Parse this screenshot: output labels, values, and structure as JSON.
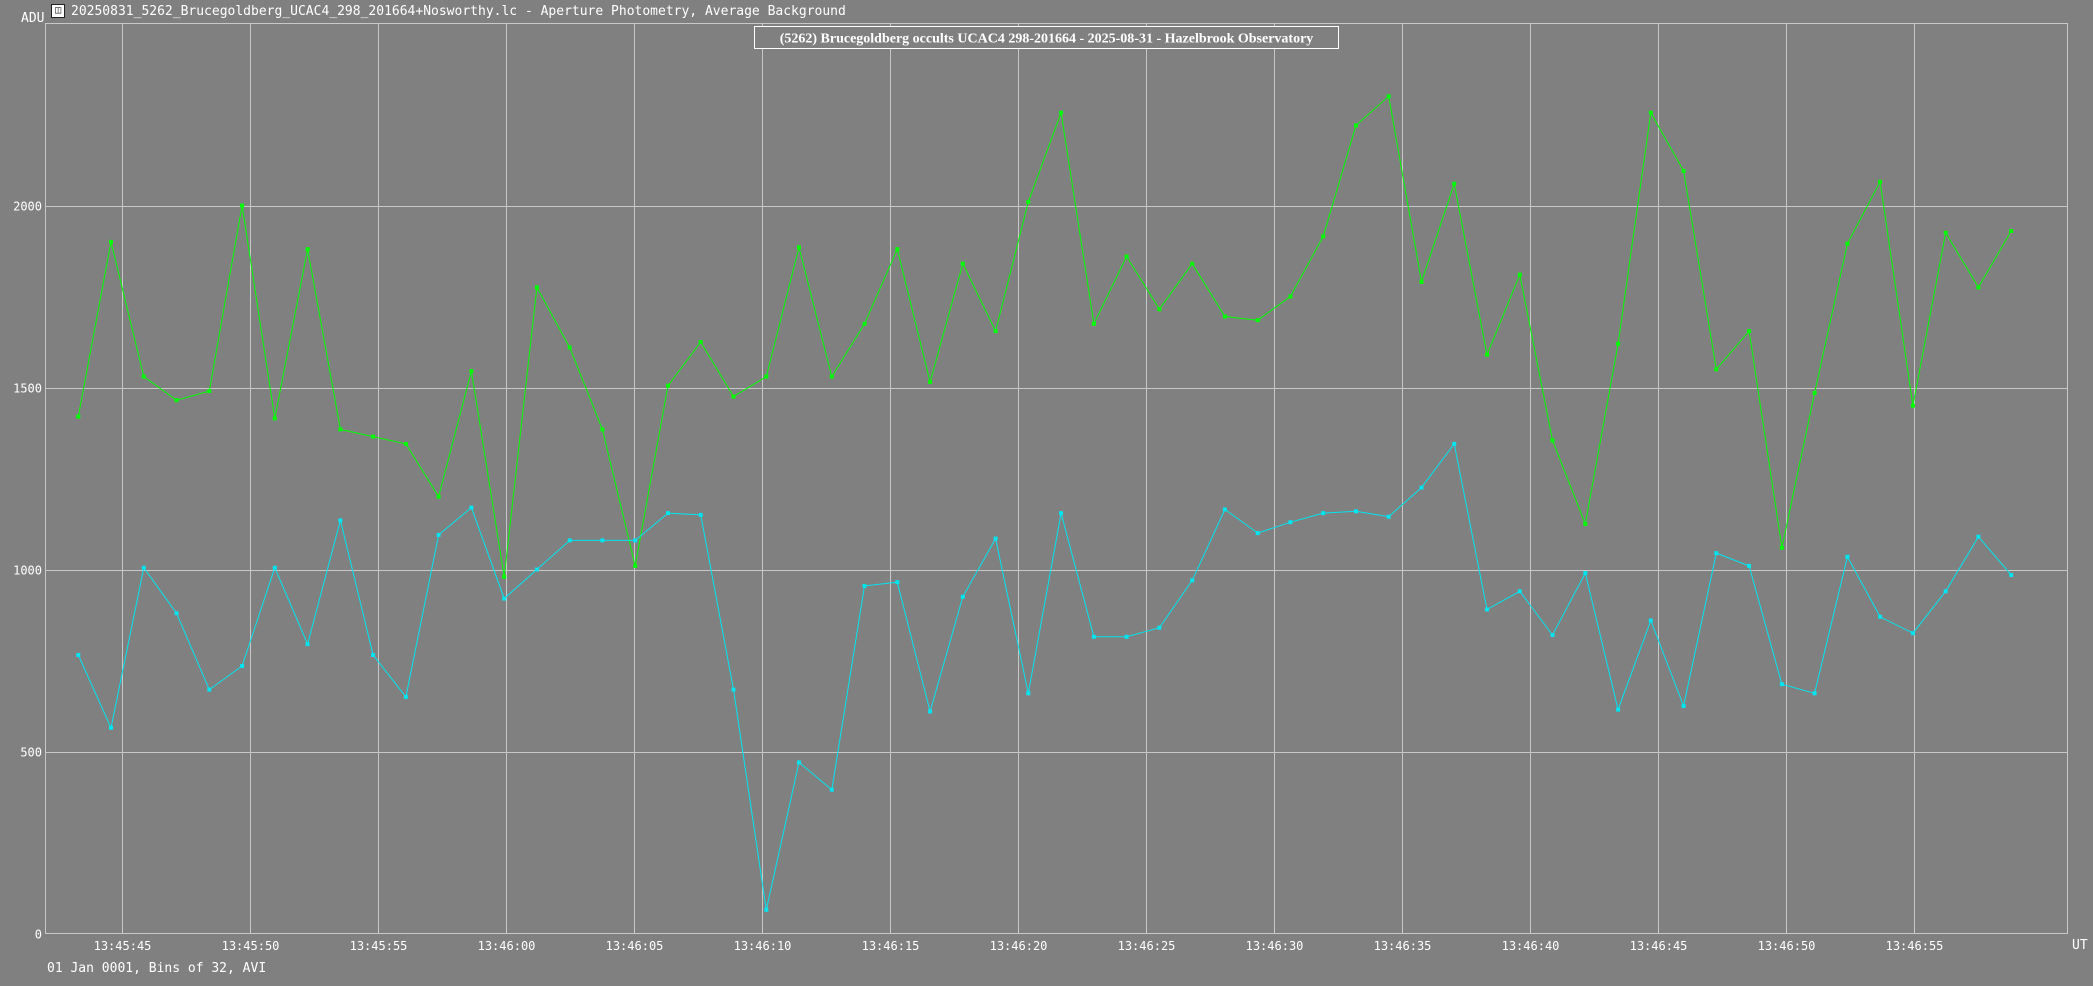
{
  "window": {
    "title": "20250831_5262_Brucegoldberg_UCAC4_298_201664+Nosworthy.lc - Aperture Photometry, Average Background"
  },
  "footer": {
    "info": "01 Jan 0001, Bins of 32, AVI"
  },
  "colors": {
    "background": "#808080",
    "grid": "#c8c8c8",
    "target_series": "#00ff00",
    "comparison_series": "#00e5f0",
    "text": "#ffffff"
  },
  "chart_data": {
    "type": "line",
    "title": "(5262) Brucegoldberg occults UCAC4 298-201664 - 2025-08-31 - Hazelbrook Observatory",
    "ylabel": "ADU",
    "xlabel": "UT",
    "ylim": [
      0,
      2500
    ],
    "yticks": [
      0,
      500,
      1000,
      1500,
      2000
    ],
    "xlim": [
      0,
      79
    ],
    "xticks": [
      {
        "t": 3,
        "label": "13:45:45"
      },
      {
        "t": 8,
        "label": "13:45:50"
      },
      {
        "t": 13,
        "label": "13:45:55"
      },
      {
        "t": 18,
        "label": "13:46:00"
      },
      {
        "t": 23,
        "label": "13:46:05"
      },
      {
        "t": 28,
        "label": "13:46:10"
      },
      {
        "t": 33,
        "label": "13:46:15"
      },
      {
        "t": 38,
        "label": "13:46:20"
      },
      {
        "t": 43,
        "label": "13:46:25"
      },
      {
        "t": 48,
        "label": "13:46:30"
      },
      {
        "t": 53,
        "label": "13:46:35"
      },
      {
        "t": 58,
        "label": "13:46:40"
      },
      {
        "t": 63,
        "label": "13:46:45"
      },
      {
        "t": 68,
        "label": "13:46:50"
      },
      {
        "t": 73,
        "label": "13:46:55"
      }
    ],
    "grid": true,
    "series": [
      {
        "color": "#00ff00",
        "x": [
          1.28,
          2.56,
          3.84,
          5.12,
          6.4,
          7.68,
          8.96,
          10.24,
          11.52,
          12.8,
          14.08,
          15.36,
          16.64,
          17.92,
          19.2,
          20.48,
          21.76,
          23.04,
          24.32,
          25.6,
          26.88,
          28.16,
          29.44,
          30.72,
          32.0,
          33.28,
          34.56,
          35.84,
          37.12,
          38.4,
          39.68,
          40.96,
          42.24,
          43.52,
          44.8,
          46.08,
          47.36,
          48.64,
          49.92,
          51.2,
          52.48,
          53.76,
          55.04,
          56.32,
          57.6,
          58.88,
          60.16,
          61.44,
          62.72,
          64.0,
          65.28,
          66.56,
          67.84,
          69.12,
          70.4,
          71.68,
          72.96,
          74.24,
          75.52,
          76.8
        ],
        "values": [
          1420,
          1900,
          1530,
          1465,
          1490,
          2000,
          1415,
          1880,
          1385,
          1365,
          1345,
          1200,
          1545,
          980,
          1775,
          1610,
          1385,
          1010,
          1505,
          1625,
          1475,
          1530,
          1885,
          1530,
          1675,
          1880,
          1515,
          1840,
          1655,
          2010,
          2255,
          1675,
          1860,
          1715,
          1840,
          1695,
          1685,
          1750,
          1915,
          2220,
          2300,
          1790,
          2060,
          1590,
          1810,
          1355,
          1125,
          1620,
          2255,
          2095,
          1550,
          1655,
          1060,
          1485,
          1895,
          2065,
          1450,
          1925,
          1775,
          1930
        ]
      },
      {
        "color": "#00e5f0",
        "x": [
          1.28,
          2.56,
          3.84,
          5.12,
          6.4,
          7.68,
          8.96,
          10.24,
          11.52,
          12.8,
          14.08,
          15.36,
          16.64,
          17.92,
          19.2,
          20.48,
          21.76,
          23.04,
          24.32,
          25.6,
          26.88,
          28.16,
          29.44,
          30.72,
          32.0,
          33.28,
          34.56,
          35.84,
          37.12,
          38.4,
          39.68,
          40.96,
          42.24,
          43.52,
          44.8,
          46.08,
          47.36,
          48.64,
          49.92,
          51.2,
          52.48,
          53.76,
          55.04,
          56.32,
          57.6,
          58.88,
          60.16,
          61.44,
          62.72,
          64.0,
          65.28,
          66.56,
          67.84,
          69.12,
          70.4,
          71.68,
          72.96,
          74.24,
          75.52,
          76.8
        ],
        "values": [
          765,
          565,
          1005,
          880,
          670,
          735,
          1005,
          795,
          1135,
          765,
          650,
          1095,
          1170,
          920,
          1000,
          1080,
          1080,
          1080,
          1155,
          1150,
          670,
          65,
          470,
          395,
          955,
          965,
          610,
          925,
          1085,
          660,
          1155,
          815,
          815,
          840,
          970,
          1165,
          1100,
          1130,
          1155,
          1160,
          1145,
          1225,
          1345,
          890,
          940,
          820,
          990,
          615,
          860,
          625,
          1045,
          1010,
          685,
          660,
          1035,
          870,
          825,
          940,
          1090,
          985
        ]
      }
    ]
  }
}
